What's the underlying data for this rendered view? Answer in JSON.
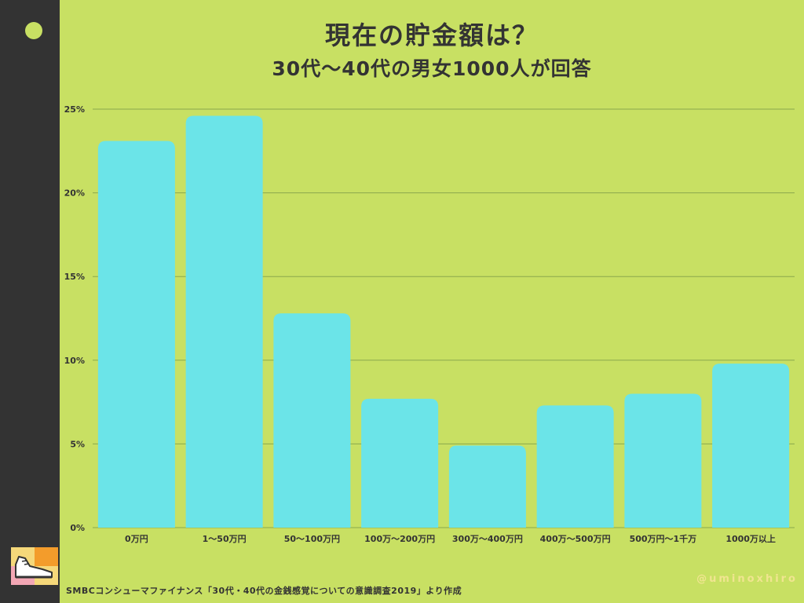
{
  "title": "現在の貯金額は？",
  "subtitle": "30代〜40代の男女1000人が回答",
  "source": "SMBCコンシューマファイナンス「30代・40代の金銭感覚についての意識調査2019」より作成",
  "watermark": "@uminoxhiro",
  "colors": {
    "background": "#c8e063",
    "sidebar": "#333333",
    "bar": "#6be4e8",
    "grid": "#8aa84c",
    "text": "#333333"
  },
  "chart_data": {
    "type": "bar",
    "categories": [
      "0万円",
      "1〜50万円",
      "50〜100万円",
      "100万〜200万円",
      "300万〜400万円",
      "400万〜500万円",
      "500万円〜1千万",
      "1000万以上"
    ],
    "values": [
      23.1,
      24.6,
      12.8,
      7.7,
      4.9,
      7.3,
      8.0,
      9.8
    ],
    "ylim": [
      0,
      25
    ],
    "yticks": [
      0,
      5,
      10,
      15,
      20,
      25
    ],
    "ytick_labels": [
      "0%",
      "5%",
      "10%",
      "15%",
      "20%",
      "25%"
    ],
    "grid": true,
    "xlabel": "",
    "ylabel": ""
  }
}
